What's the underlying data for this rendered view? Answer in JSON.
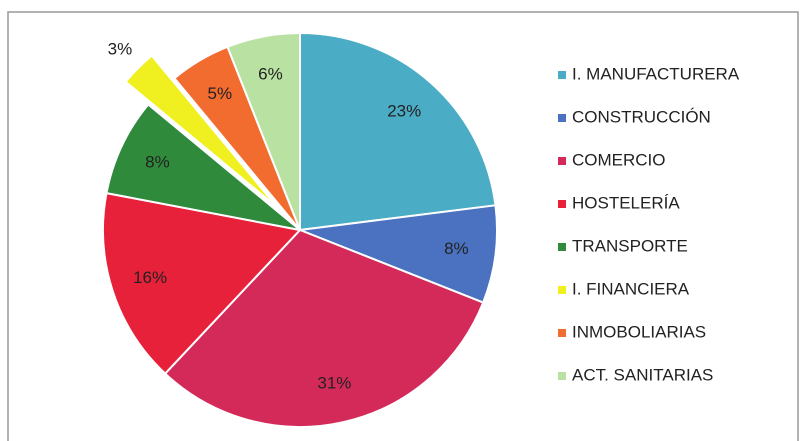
{
  "chart_data": {
    "type": "pie",
    "categories": [
      "I. MANUFACTURERA",
      "CONSTRUCCIÓN",
      "COMERCIO",
      "HOSTELERÍA",
      "TRANSPORTE",
      "I. FINANCIERA",
      "INMOBOLIARIAS",
      "ACT. SANITARIAS"
    ],
    "values": [
      23,
      8,
      31,
      16,
      8,
      3,
      5,
      6
    ],
    "value_labels": [
      "23%",
      "8%",
      "31%",
      "16%",
      "8%",
      "3%",
      "5%",
      "6%"
    ],
    "colors": [
      "#4bacc6",
      "#4a72c0",
      "#d42a5a",
      "#e8213a",
      "#2f8a3c",
      "#f0f020",
      "#f26b2f",
      "#b9e2a2"
    ],
    "exploded": [
      false,
      false,
      false,
      false,
      false,
      true,
      false,
      false
    ],
    "legend": "right"
  }
}
